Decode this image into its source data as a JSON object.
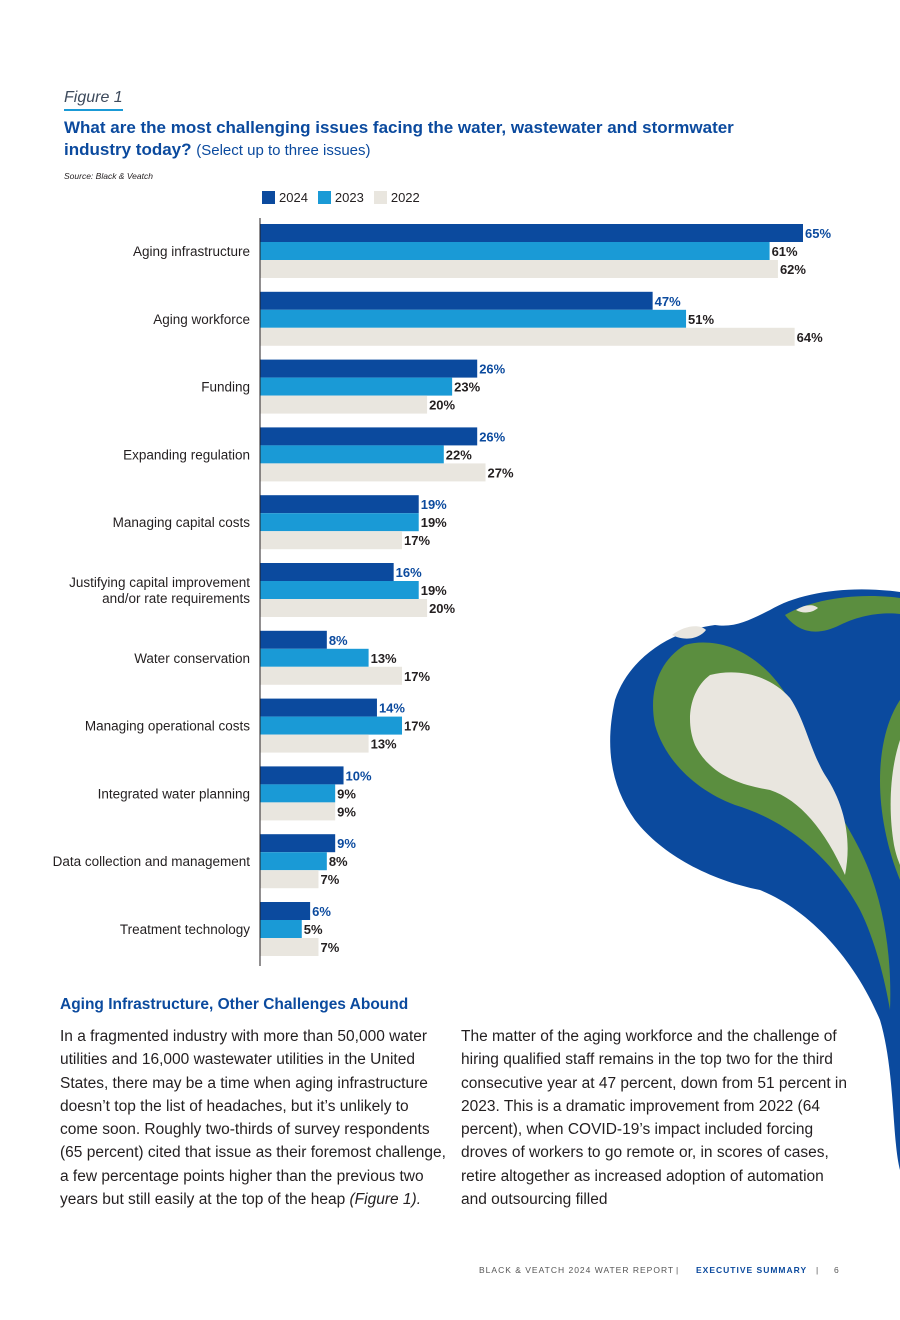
{
  "figure": {
    "label": "Figure 1",
    "title": "What are the most challenging issues facing the water, wastewater and stormwater industry today?",
    "subtitle": "(Select up to three issues)",
    "source": "Source: Black & Veatch"
  },
  "chart_data": {
    "type": "bar",
    "orientation": "horizontal",
    "categories": [
      "Aging infrastructure",
      "Aging workforce",
      "Funding",
      "Expanding regulation",
      "Managing capital costs",
      "Justifying capital improvement and/or rate requirements",
      "Water conservation",
      "Managing operational costs",
      "Integrated water planning",
      "Data collection and management",
      "Treatment technology"
    ],
    "category_lines": [
      [
        "Aging infrastructure"
      ],
      [
        "Aging workforce"
      ],
      [
        "Funding"
      ],
      [
        "Expanding regulation"
      ],
      [
        "Managing capital costs"
      ],
      [
        "Justifying capital improvement",
        "and/or rate requirements"
      ],
      [
        "Water conservation"
      ],
      [
        "Managing operational costs"
      ],
      [
        "Integrated water planning"
      ],
      [
        "Data collection and management"
      ],
      [
        "Treatment technology"
      ]
    ],
    "series": [
      {
        "name": "2024",
        "color": "#0b4a9e",
        "label_color": "#0b4a9e",
        "values": [
          65,
          47,
          26,
          26,
          19,
          16,
          8,
          14,
          10,
          9,
          6
        ]
      },
      {
        "name": "2023",
        "color": "#1a9ad6",
        "label_color": "#231f20",
        "values": [
          61,
          51,
          23,
          22,
          19,
          19,
          13,
          17,
          9,
          8,
          5
        ]
      },
      {
        "name": "2022",
        "color": "#e9e6df",
        "label_color": "#231f20",
        "values": [
          62,
          64,
          20,
          27,
          17,
          20,
          17,
          13,
          9,
          7,
          7
        ]
      }
    ],
    "value_suffix": "%",
    "xlim": [
      0,
      65
    ],
    "legend_position": "top",
    "grid": false
  },
  "section": {
    "heading": "Aging Infrastructure, Other Challenges Abound",
    "col1_text": "In a fragmented industry with more than 50,000 water utilities and 16,000 wastewater utilities in the United States, there may be a time when aging infrastructure doesn’t top the list of headaches, but it’s unlikely to come soon. Roughly two-thirds of survey respondents (65 percent) cited that issue as their foremost challenge, a few percentage points higher than the previous two years but still easily at the top of the heap ",
    "col1_ref": "(Figure 1).",
    "col2_text": "The matter of the aging workforce and the challenge of hiring qualified staff remains in the top two for the third consecutive year at 47 percent, down from 51 percent in 2023. This is a dramatic improvement from 2022 (64 percent), when COVID-19’s impact included forcing droves of workers to go remote or, in scores of cases, retire altogether as increased adoption of automation and outsourcing filled"
  },
  "footer": {
    "report": "BLACK & VEATCH 2024 WATER REPORT",
    "sep1": "|",
    "section": "EXECUTIVE SUMMARY",
    "sep2": "|",
    "page": "6"
  }
}
